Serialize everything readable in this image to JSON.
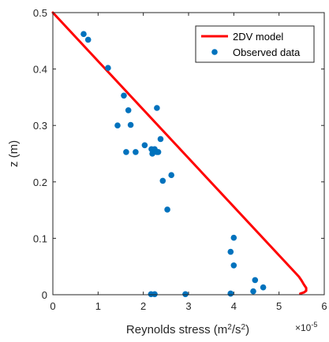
{
  "chart_data": {
    "type": "line+scatter",
    "xlabel": {
      "prefix": "Reynolds stress (m",
      "sup1": "2",
      "mid": "/s",
      "sup2": "2",
      "suffix": ")"
    },
    "ylabel": "z (m)",
    "x_exponent_label": {
      "base": "×10",
      "exp": "-5"
    },
    "xlim": [
      0,
      6
    ],
    "ylim": [
      0,
      0.5
    ],
    "xticks": [
      "0",
      "1",
      "2",
      "3",
      "4",
      "5",
      "6"
    ],
    "yticks": [
      "0",
      "0.1",
      "0.2",
      "0.3",
      "0.4",
      "0.5"
    ],
    "legend_position": "top-right",
    "colors": {
      "model": "#ff0000",
      "observed": "#0072bd"
    },
    "series": [
      {
        "name": "2DV model",
        "type": "line",
        "x": [
          0,
          5.3,
          5.44,
          5.5,
          5.55,
          5.6,
          5.6,
          5.55,
          5.47
        ],
        "y": [
          0.5,
          0.044,
          0.032,
          0.025,
          0.018,
          0.012,
          0.007,
          0.004,
          0.002
        ]
      },
      {
        "name": "Observed data",
        "type": "scatter",
        "x": [
          0.68,
          0.78,
          1.22,
          1.57,
          1.67,
          1.72,
          1.43,
          2.3,
          2.38,
          2.03,
          2.18,
          2.25,
          2.33,
          1.83,
          1.62,
          2.2,
          2.3,
          2.62,
          2.43,
          2.53,
          4.0,
          3.93,
          4.0,
          3.93,
          4.47,
          4.65,
          4.43,
          2.17,
          2.25,
          2.93,
          3.93
        ],
        "y": [
          0.462,
          0.452,
          0.402,
          0.353,
          0.327,
          0.301,
          0.3,
          0.331,
          0.276,
          0.265,
          0.258,
          0.258,
          0.253,
          0.253,
          0.253,
          0.25,
          0.253,
          0.212,
          0.202,
          0.151,
          0.101,
          0.076,
          0.052,
          0.002,
          0.026,
          0.013,
          0.006,
          0.001,
          0.001,
          0.001,
          0.002
        ]
      }
    ]
  }
}
